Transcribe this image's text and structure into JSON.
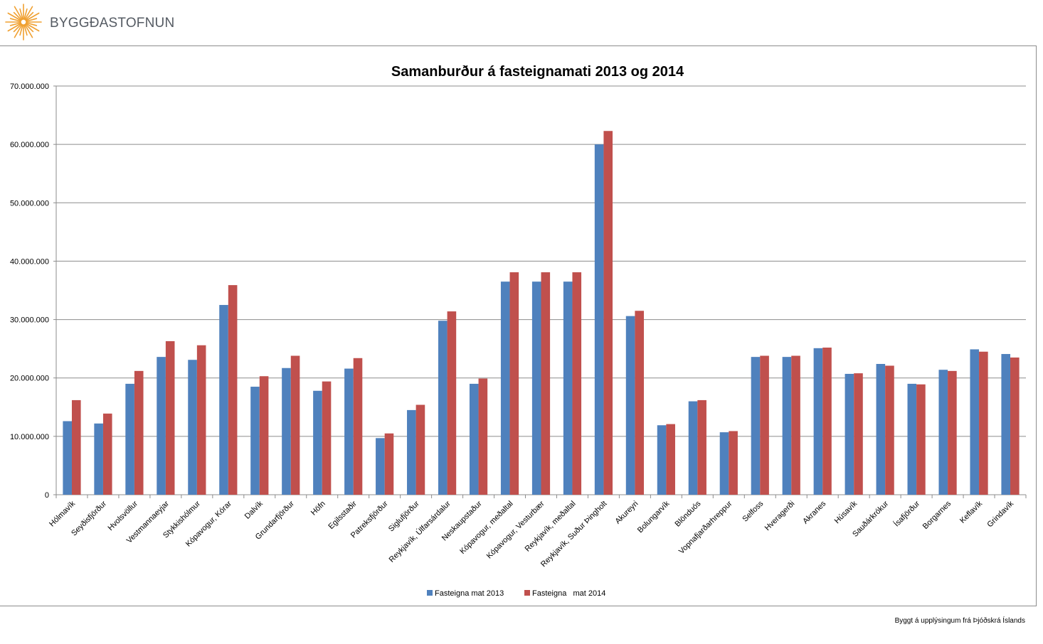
{
  "logo": {
    "icon": "sunburst-logo-icon",
    "text": "BYGGÐASTOFNUN",
    "color": "#f0a030"
  },
  "source_note": "Byggt á upplýsingum frá Þjóðskrá Íslands",
  "chart_data": {
    "type": "bar",
    "title": "Samanburður á fasteignamati 2013 og 2014",
    "xlabel": "",
    "ylabel": "",
    "ylim": [
      0,
      70000000
    ],
    "yticks": [
      0,
      10000000,
      20000000,
      30000000,
      40000000,
      50000000,
      60000000,
      70000000
    ],
    "ytick_labels": [
      "0",
      "10.000.000",
      "20.000.000",
      "30.000.000",
      "40.000.000",
      "50.000.000",
      "60.000.000",
      "70.000.000"
    ],
    "grid": true,
    "legend_position": "bottom",
    "categories": [
      "Hólmavík",
      "Seyðisfjörður",
      "Hvolsvöllur",
      "Vestmannaeyjar",
      "Stykkishólmur",
      "Kópavogur, Kórar",
      "Dalvík",
      "Grundarfjörður",
      "Höfn",
      "Egilsstaðir",
      "Patreksfjörður",
      "Siglufjörður",
      "Reykjavík, Úlfarsárdalur",
      "Neskaupstaður",
      "Kópavogur, meðaltal",
      "Kópavogur, Vesturbær",
      "Reykjavík, meðaltal",
      "Reykjavík, Suður Þingholt",
      "Akureyri",
      "Bolungarvík",
      "Blönduós",
      "Vopnafjarðarhreppur",
      "Selfoss",
      "Hveragerði",
      "Akranes",
      "Húsavík",
      "Sauðárkrókur",
      "Ísafjörður",
      "Borgarnes",
      "Keflavík",
      "Grindavík"
    ],
    "series": [
      {
        "name": "Fasteigna mat 2013",
        "color": "#4f81bd",
        "values": [
          12600000,
          12200000,
          19000000,
          23600000,
          23100000,
          32500000,
          18500000,
          21700000,
          17800000,
          21600000,
          9700000,
          14500000,
          29800000,
          19000000,
          36500000,
          36500000,
          36500000,
          60000000,
          30600000,
          11900000,
          16000000,
          10700000,
          23600000,
          23600000,
          25100000,
          20700000,
          22400000,
          19000000,
          21400000,
          24900000,
          24100000
        ]
      },
      {
        "name": "Fasteigna   mat 2014",
        "color": "#c0504d",
        "values": [
          16200000,
          13900000,
          21200000,
          26300000,
          25600000,
          35900000,
          20300000,
          23800000,
          19400000,
          23400000,
          10500000,
          15400000,
          31400000,
          19900000,
          38100000,
          38100000,
          38100000,
          62300000,
          31500000,
          12100000,
          16200000,
          10900000,
          23800000,
          23800000,
          25200000,
          20800000,
          22100000,
          18900000,
          21200000,
          24500000,
          23500000
        ]
      }
    ]
  }
}
